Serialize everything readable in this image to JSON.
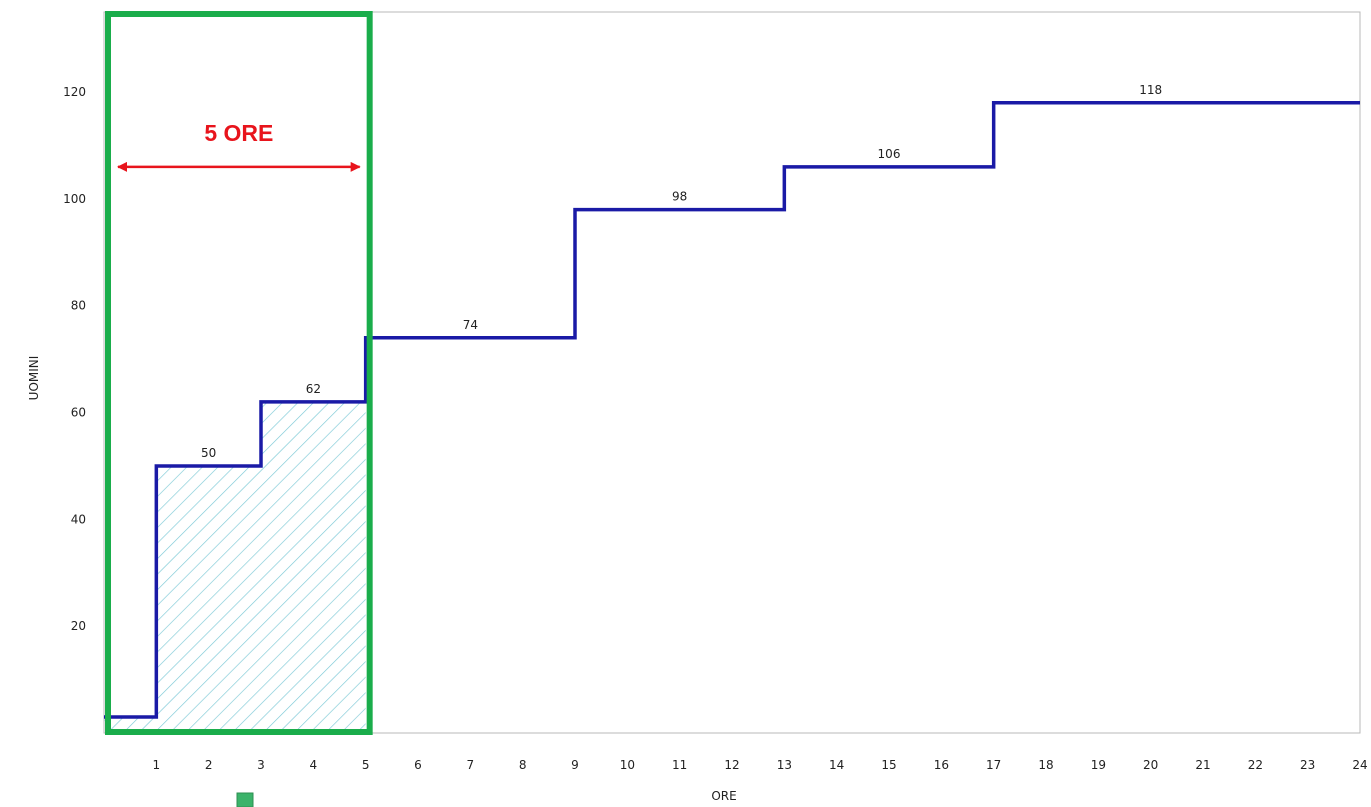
{
  "chart_data": {
    "type": "line",
    "step": true,
    "xlabel": "ORE",
    "ylabel": "UOMINI",
    "x_ticks": [
      1,
      2,
      3,
      4,
      5,
      6,
      7,
      8,
      9,
      10,
      11,
      12,
      13,
      14,
      15,
      16,
      17,
      18,
      19,
      20,
      21,
      22,
      23,
      24
    ],
    "y_ticks": [
      20,
      40,
      60,
      80,
      100,
      120
    ],
    "xlim": [
      0,
      24
    ],
    "ylim": [
      0,
      135
    ],
    "grid": false,
    "series": [
      {
        "color": "#1a1aa6",
        "steps": [
          {
            "x0": 0,
            "x1": 1,
            "y": 3
          },
          {
            "x0": 1,
            "x1": 3,
            "y": 50
          },
          {
            "x0": 3,
            "x1": 5,
            "y": 62
          },
          {
            "x0": 5,
            "x1": 9,
            "y": 74
          },
          {
            "x0": 9,
            "x1": 13,
            "y": 98
          },
          {
            "x0": 13,
            "x1": 17,
            "y": 106
          },
          {
            "x0": 17,
            "x1": 24,
            "y": 118
          }
        ]
      }
    ],
    "data_labels": [
      {
        "x": 2,
        "y": 50,
        "text": "50"
      },
      {
        "x": 4,
        "y": 62,
        "text": "62"
      },
      {
        "x": 7,
        "y": 74,
        "text": "74"
      },
      {
        "x": 11,
        "y": 98,
        "text": "98"
      },
      {
        "x": 15,
        "y": 106,
        "text": "106"
      },
      {
        "x": 20,
        "y": 118,
        "text": "118"
      }
    ],
    "hatched_area": {
      "x0": 0,
      "x1": 5,
      "color": "#7cc9d6"
    },
    "highlight": {
      "x0": 0,
      "x1": 5,
      "color": "#1aad4b",
      "label": "5 ORE",
      "label_color": "#e8141c",
      "arrow_y": 106
    },
    "legend_swatch_color": "#3bb36a"
  }
}
